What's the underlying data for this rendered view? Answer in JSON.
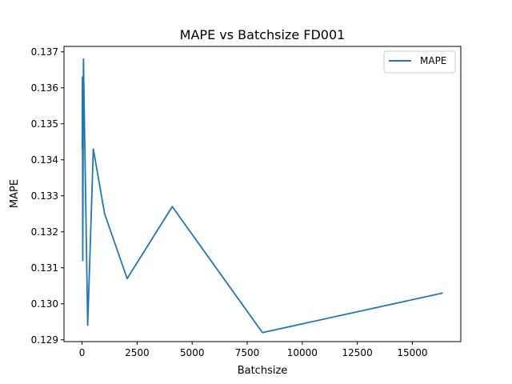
{
  "chart_data": {
    "type": "line",
    "title": "MAPE vs Batchsize FD001",
    "xlabel": "Batchsize",
    "ylabel": "MAPE",
    "xlim": [
      -820,
      17200
    ],
    "ylim": [
      0.12895,
      0.13715
    ],
    "xticks": [
      0,
      2500,
      5000,
      7500,
      10000,
      12500,
      15000
    ],
    "yticks": [
      0.129,
      0.13,
      0.131,
      0.132,
      0.133,
      0.134,
      0.135,
      0.136,
      0.137
    ],
    "grid": false,
    "legend_position": "top-right",
    "series": [
      {
        "name": "MAPE",
        "color": "#1f77b4",
        "x": [
          8,
          16,
          32,
          64,
          128,
          256,
          512,
          1024,
          2048,
          4096,
          8192,
          16384
        ],
        "y": [
          0.1343,
          0.1363,
          0.1312,
          0.1368,
          0.1343,
          0.1294,
          0.1343,
          0.1325,
          0.1307,
          0.1327,
          0.1292,
          0.1303
        ]
      }
    ]
  }
}
